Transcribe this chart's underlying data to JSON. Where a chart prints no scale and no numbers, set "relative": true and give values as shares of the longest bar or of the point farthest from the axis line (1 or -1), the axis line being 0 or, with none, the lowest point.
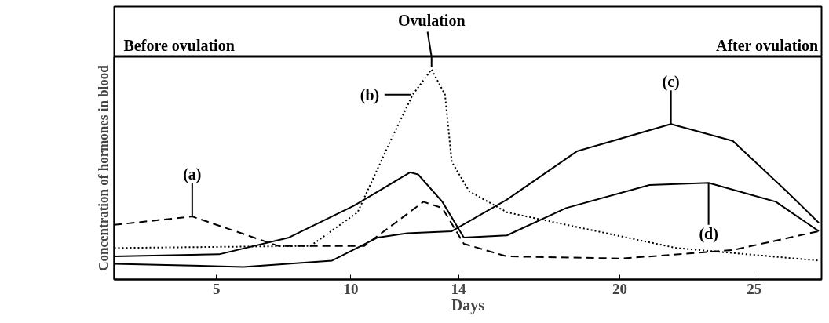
{
  "chart_data": {
    "type": "line",
    "relative": true,
    "xlabel": "Days",
    "ylabel": "Concentration of hormones in blood",
    "xlim": [
      1.2,
      27.5
    ],
    "xticks": [
      5,
      10,
      14,
      20,
      25
    ],
    "grid": false,
    "series": [
      {
        "color": "#000000",
        "line_style": "dashed",
        "x": [
          1.2,
          4.1,
          7.3,
          10.5,
          12.7,
          13.4,
          14.2,
          15.8,
          20.1,
          24.2,
          27.4
        ],
        "values": [
          0.26,
          0.3,
          0.16,
          0.16,
          0.37,
          0.34,
          0.17,
          0.11,
          0.1,
          0.14,
          0.23
        ]
      },
      {
        "color": "#000000",
        "line_style": "dotted",
        "x": [
          1.2,
          8.5,
          10.25,
          11.4,
          12.3,
          13.0,
          13.5,
          13.75,
          14.4,
          15.8,
          18.4,
          22.1,
          27.4
        ],
        "values": [
          0.15,
          0.16,
          0.32,
          0.64,
          0.88,
          1,
          0.88,
          0.56,
          0.42,
          0.32,
          0.25,
          0.15,
          0.09
        ]
      },
      {
        "color": "#000000",
        "line_style": "solid",
        "x": [
          1.2,
          6,
          9.3,
          11.0,
          12.1,
          13.75,
          15.8,
          18.4,
          21.9,
          24.2,
          26.2,
          27.4
        ],
        "values": [
          0.075,
          0.06,
          0.09,
          0.2,
          0.22,
          0.23,
          0.38,
          0.61,
          0.74,
          0.66,
          0.42,
          0.27
        ]
      },
      {
        "color": "#000000",
        "line_style": "solid",
        "x": [
          1.2,
          5.1,
          7.7,
          10.1,
          12.2,
          12.5,
          13.4,
          14.2,
          15.8,
          18.0,
          21.1,
          23.3,
          25.8,
          27.4
        ],
        "values": [
          0.11,
          0.12,
          0.2,
          0.35,
          0.51,
          0.5,
          0.37,
          0.2,
          0.21,
          0.34,
          0.45,
          0.46,
          0.37,
          0.23
        ]
      }
    ],
    "annotations": [
      "Before ovulation",
      "After ovulation",
      {
        "text": "Ovulation",
        "x": 13.0,
        "y": 1
      },
      {
        "text": "(a)",
        "x": 4.1,
        "y": 0.3
      },
      {
        "text": "(b)",
        "x": 12.3,
        "y": 0.88
      },
      {
        "text": "(c)",
        "x": 21.9,
        "y": 0.74
      },
      {
        "text": "(d)",
        "x": 23.3,
        "y": 0.46
      }
    ]
  }
}
